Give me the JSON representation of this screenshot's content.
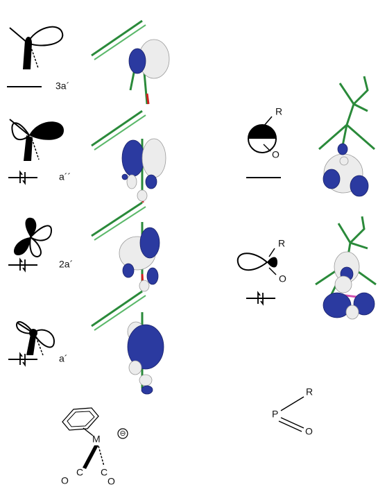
{
  "left_levels": [
    {
      "label": "3a´"
    },
    {
      "label": "a´´"
    },
    {
      "label": "2a´"
    },
    {
      "label": "a´"
    }
  ],
  "right_levels": [
    {
      "R": "R",
      "O": "O"
    },
    {
      "R": "R",
      "O": "O"
    }
  ],
  "metal_fragment": {
    "metal": "M",
    "charge": "⊖",
    "co_left": {
      "C": "C",
      "O": "O"
    },
    "co_right": {
      "C": "C",
      "O": "O"
    }
  },
  "phosphinidene_fragment": {
    "P": "P",
    "R": "R",
    "O": "O"
  }
}
